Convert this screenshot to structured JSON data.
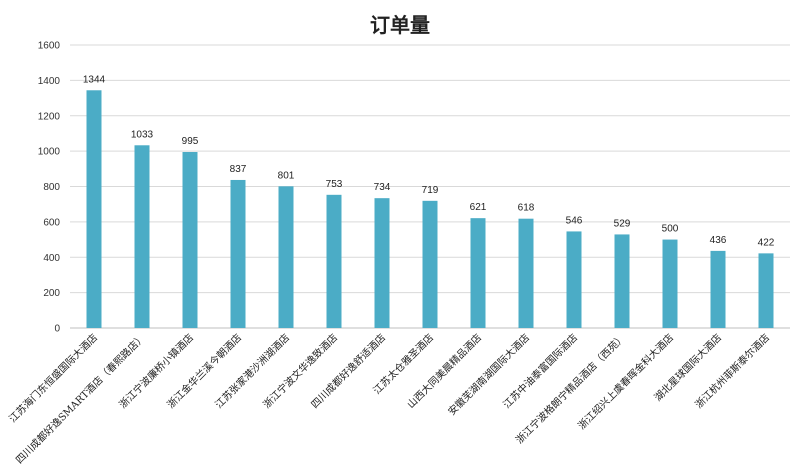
{
  "chart_data": {
    "type": "bar",
    "title": "订单量",
    "categories": [
      "江苏海门东恒盛国际大酒店",
      "四川成都好逸SMART酒店（春熙路店）",
      "浙江宁波廉桥小镇酒店",
      "浙江金华兰溪今朝酒店",
      "江苏张家港沙洲湖酒店",
      "浙江宁波文华逸致酒店",
      "四川成都好逸舒适酒店",
      "江苏太仓雅圣酒店",
      "山西大同美晨精品酒店",
      "安徽芜湖南湖国际大酒店",
      "江苏中油泰富国际酒店",
      "浙江宁波格朗宁精品酒店（西苑）",
      "浙江绍兴上虞春晖金科大酒店",
      "湖北星球国际大酒店",
      "浙江杭州菲斯泰尔酒店"
    ],
    "values": [
      1344,
      1033,
      995,
      837,
      801,
      753,
      734,
      719,
      621,
      618,
      546,
      529,
      500,
      436,
      422
    ],
    "ylim": [
      0,
      1600
    ],
    "yticks": [
      0,
      200,
      400,
      600,
      800,
      1000,
      1200,
      1400,
      1600
    ],
    "grid": true,
    "legend": "none",
    "data_labels": true,
    "bar_color": "#4bacc6"
  }
}
